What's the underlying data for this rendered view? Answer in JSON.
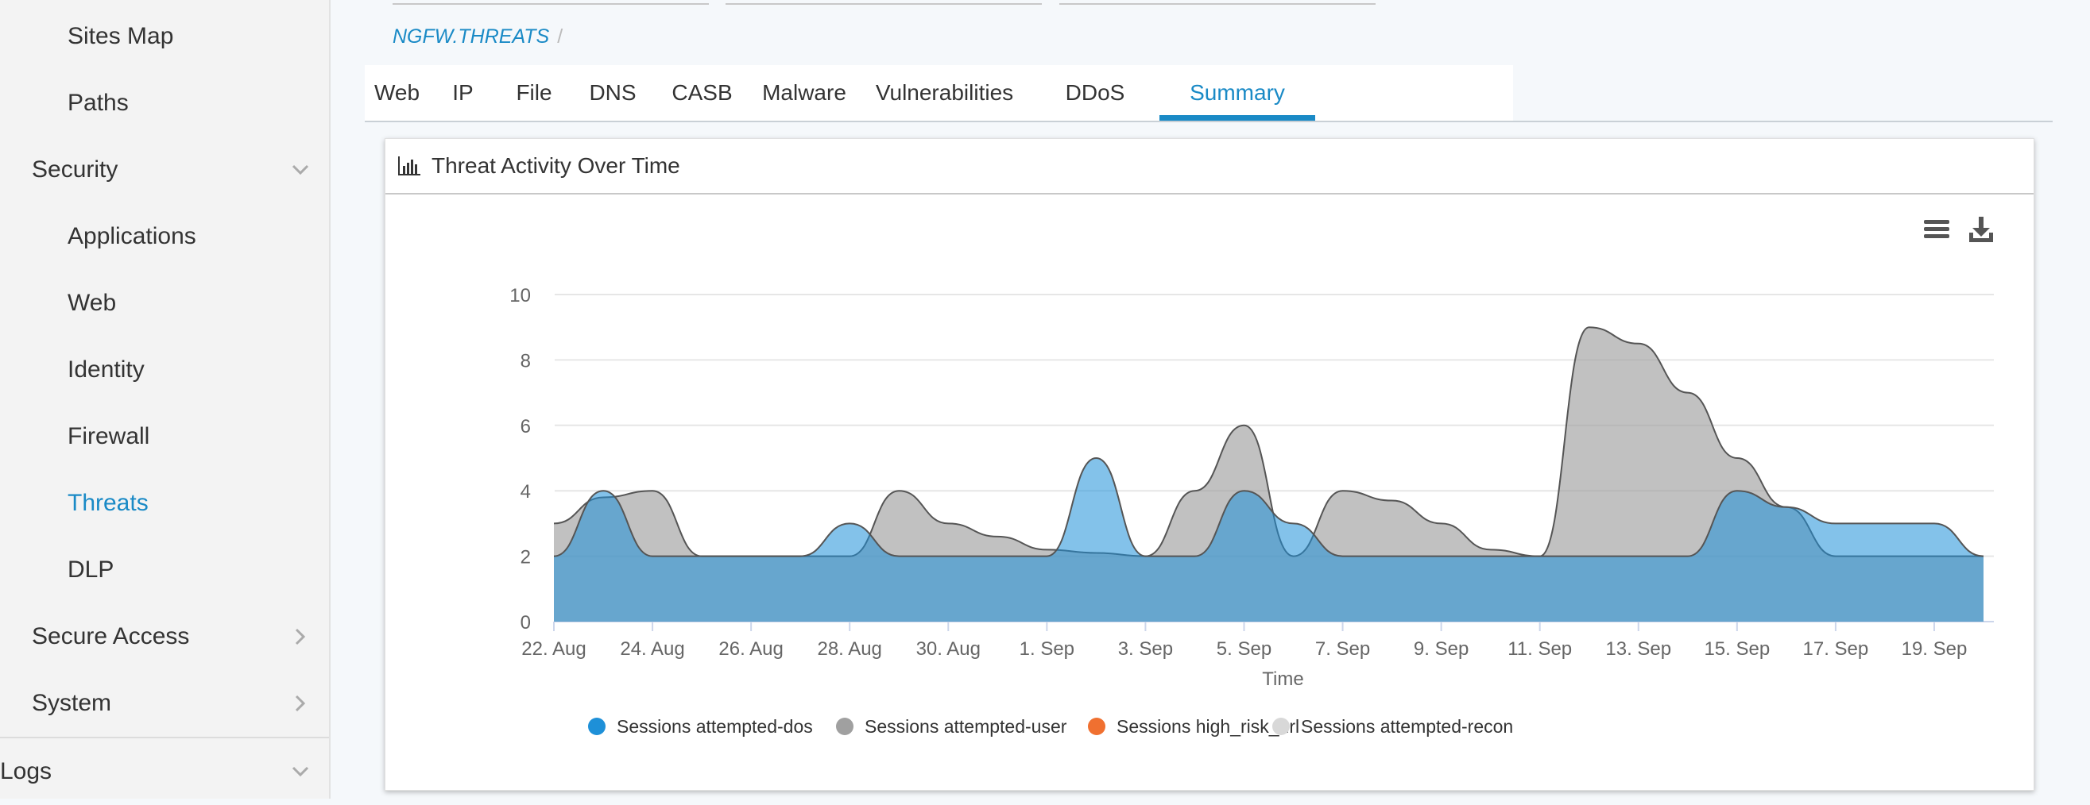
{
  "sidebar": {
    "items": [
      {
        "label": "Sites Map",
        "level": 2
      },
      {
        "label": "Paths",
        "level": 2
      },
      {
        "label": "Security",
        "level": 1,
        "chevron": "down"
      },
      {
        "label": "Applications",
        "level": 2
      },
      {
        "label": "Web",
        "level": 2
      },
      {
        "label": "Identity",
        "level": 2
      },
      {
        "label": "Firewall",
        "level": 2
      },
      {
        "label": "Threats",
        "level": 2,
        "active": true
      },
      {
        "label": "DLP",
        "level": 2
      },
      {
        "label": "Secure Access",
        "level": 1,
        "chevron": "right"
      },
      {
        "label": "System",
        "level": 1,
        "chevron": "right"
      },
      {
        "label": "Logs",
        "level": 0,
        "chevron": "down"
      }
    ]
  },
  "breadcrumb": {
    "path": "NGFW.THREATS",
    "separator": "/"
  },
  "tabs": [
    {
      "label": "Web"
    },
    {
      "label": "IP"
    },
    {
      "label": "File"
    },
    {
      "label": "DNS"
    },
    {
      "label": "CASB"
    },
    {
      "label": "Malware"
    },
    {
      "label": "Vulnerabilities"
    },
    {
      "label": "DDoS"
    },
    {
      "label": "Summary",
      "active": true
    }
  ],
  "panel": {
    "title": "Threat Activity Over Time",
    "icons": {
      "title": "bar-chart-icon",
      "menu": "hamburger-menu-icon",
      "download": "download-icon"
    }
  },
  "colors": {
    "accent": "#1a8ac6",
    "dos": "#1e90d8",
    "user": "#a0a0a0",
    "high_risk_url": "#f07030",
    "recon": "#d8d8d8"
  },
  "chart_data": {
    "type": "area",
    "title": "Threat Activity Over Time",
    "xlabel": "Time",
    "ylabel": "",
    "ylim": [
      0,
      10
    ],
    "yticks": [
      0,
      2,
      4,
      6,
      8,
      10
    ],
    "xlim": [
      "2023-08-22",
      "2023-09-20"
    ],
    "xticks": [
      "22. Aug",
      "24. Aug",
      "26. Aug",
      "28. Aug",
      "30. Aug",
      "1. Sep",
      "3. Sep",
      "5. Sep",
      "7. Sep",
      "9. Sep",
      "11. Sep",
      "13. Sep",
      "15. Sep",
      "17. Sep",
      "19. Sep"
    ],
    "grid": true,
    "legend": "bottom",
    "series": [
      {
        "name": "Sessions attempted-dos",
        "color": "#1e90d8",
        "x": [
          "2023-08-22",
          "2023-08-23",
          "2023-08-24",
          "2023-08-25",
          "2023-08-26",
          "2023-08-27",
          "2023-08-28",
          "2023-08-29",
          "2023-08-30",
          "2023-08-31",
          "2023-09-01",
          "2023-09-02",
          "2023-09-03",
          "2023-09-04",
          "2023-09-05",
          "2023-09-06",
          "2023-09-07",
          "2023-09-08",
          "2023-09-09",
          "2023-09-10",
          "2023-09-11",
          "2023-09-12",
          "2023-09-13",
          "2023-09-14",
          "2023-09-15",
          "2023-09-16",
          "2023-09-17",
          "2023-09-18",
          "2023-09-19",
          "2023-09-20"
        ],
        "values": [
          2,
          4,
          2,
          2,
          2,
          2,
          3,
          2,
          2,
          2,
          2,
          5,
          2,
          2,
          4,
          3,
          2,
          2,
          2,
          2,
          2,
          2,
          2,
          2,
          4,
          3.5,
          3,
          3,
          3,
          2
        ]
      },
      {
        "name": "Sessions attempted-user",
        "color": "#a0a0a0",
        "x": [
          "2023-08-22",
          "2023-08-23",
          "2023-08-24",
          "2023-08-25",
          "2023-08-26",
          "2023-08-27",
          "2023-08-28",
          "2023-08-29",
          "2023-08-30",
          "2023-08-31",
          "2023-09-01",
          "2023-09-02",
          "2023-09-03",
          "2023-09-04",
          "2023-09-05",
          "2023-09-06",
          "2023-09-07",
          "2023-09-08",
          "2023-09-09",
          "2023-09-10",
          "2023-09-11",
          "2023-09-12",
          "2023-09-13",
          "2023-09-14",
          "2023-09-15",
          "2023-09-16",
          "2023-09-17",
          "2023-09-18",
          "2023-09-19",
          "2023-09-20"
        ],
        "values": [
          3,
          3.8,
          4,
          2,
          2,
          2,
          2,
          4,
          3,
          2.6,
          2.2,
          2.1,
          2,
          4,
          6,
          2,
          4,
          3.7,
          3,
          2.2,
          2,
          9,
          8.5,
          7,
          5,
          3.5,
          2,
          2,
          2,
          2
        ]
      },
      {
        "name": "Sessions high_risk_url",
        "color": "#f07030",
        "x": [],
        "values": []
      },
      {
        "name": "Sessions attempted-recon",
        "color": "#d8d8d8",
        "x": [],
        "values": []
      }
    ]
  }
}
